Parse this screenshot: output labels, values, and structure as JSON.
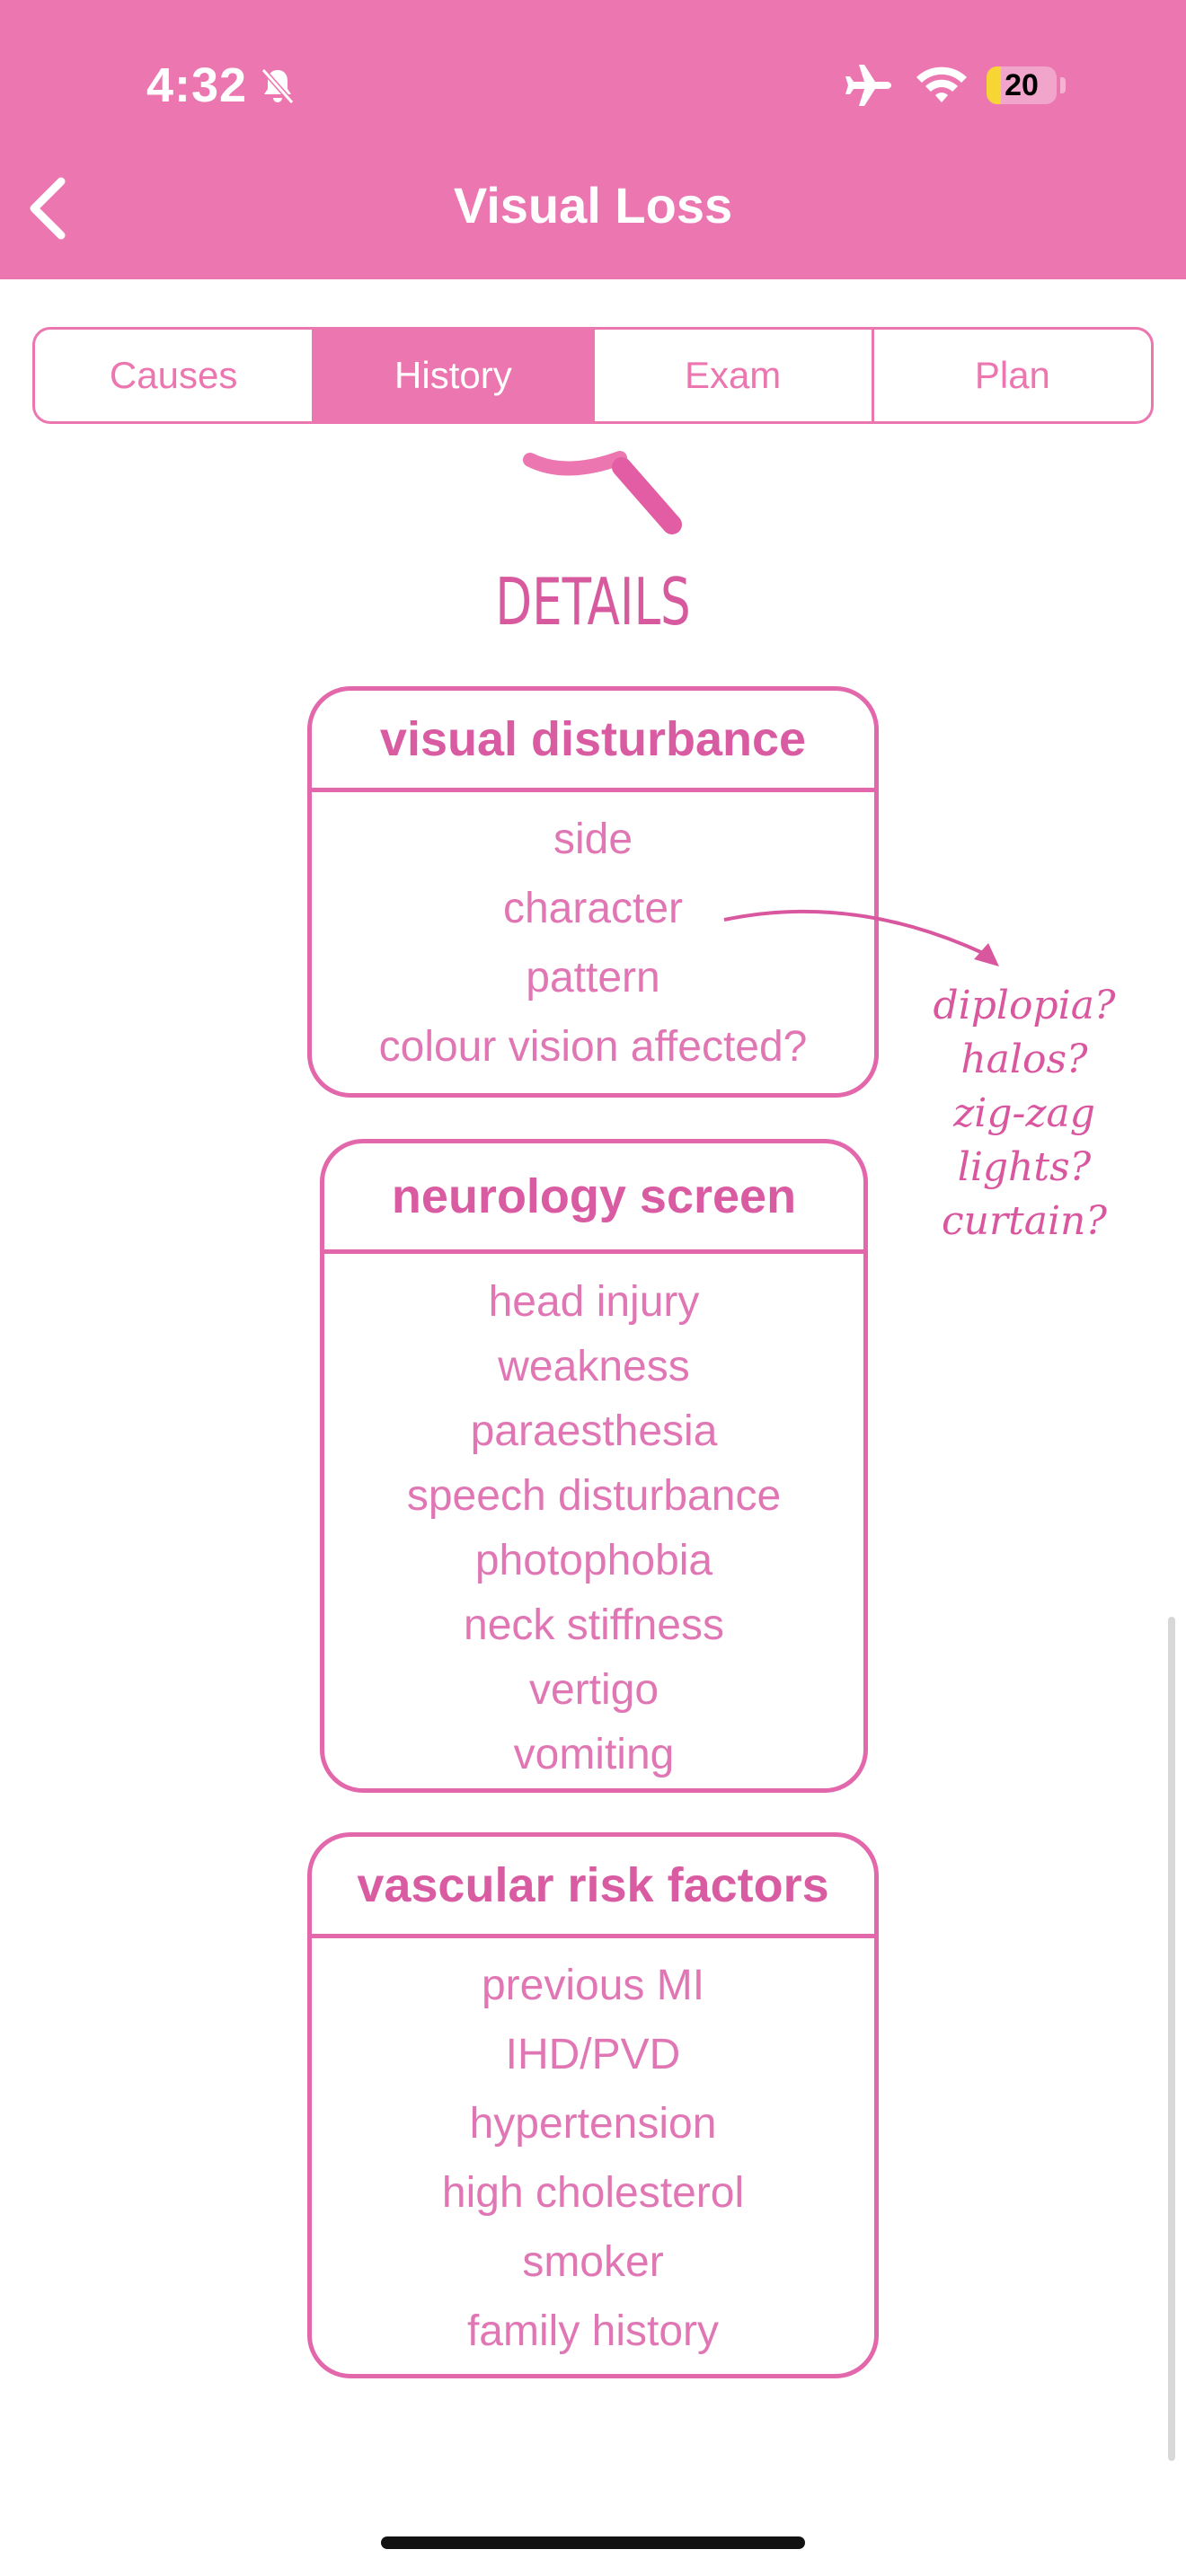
{
  "status_bar": {
    "time": "4:32",
    "battery_level": "20",
    "icons": [
      "bell-off-icon",
      "airplane-icon",
      "wifi-icon",
      "battery-icon"
    ]
  },
  "nav": {
    "title": "Visual Loss",
    "back_icon": "chevron-left-icon"
  },
  "tabs": [
    {
      "label": "Causes",
      "active": false
    },
    {
      "label": "History",
      "active": true
    },
    {
      "label": "Exam",
      "active": false
    },
    {
      "label": "Plan",
      "active": false
    }
  ],
  "section_title": "DETAILS",
  "cards": [
    {
      "title": "visual disturbance",
      "items": [
        "side",
        "character",
        "pattern",
        "colour vision affected?"
      ]
    },
    {
      "title": "neurology screen",
      "items": [
        "head injury",
        "weakness",
        "paraesthesia",
        "speech disturbance",
        "photophobia",
        "neck stiffness",
        "vertigo",
        "vomiting"
      ]
    },
    {
      "title": "vascular risk factors",
      "items": [
        "previous MI",
        "IHD/PVD",
        "hypertension",
        "high cholesterol",
        "smoker",
        "family history"
      ]
    }
  ],
  "annotation": {
    "lines": [
      "diplopia?",
      "halos?",
      "zig-zag",
      "lights?",
      "curtain?"
    ]
  },
  "colors": {
    "brand": "#EC76B0",
    "accent_text": "#D95BA1",
    "item_text": "#E077B4"
  }
}
